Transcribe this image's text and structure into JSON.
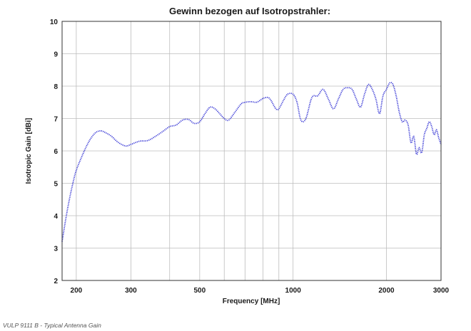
{
  "caption": "VULP 9111 B - Typical Antenna Gain",
  "chart_data": {
    "type": "line",
    "title": "Gewinn bezogen auf Isotropstrahler:",
    "xlabel": "Frequency [MHz]",
    "ylabel": "Isotropic Gain [dBi]",
    "xscale": "log",
    "xlim": [
      180,
      3000
    ],
    "ylim": [
      2,
      10
    ],
    "x_ticks": [
      200,
      300,
      500,
      1000,
      2000,
      3000
    ],
    "x_tick_labels": [
      "200",
      "300",
      "500",
      "1000",
      "2000",
      "3000"
    ],
    "x_gridlines": [
      200,
      300,
      400,
      500,
      600,
      700,
      800,
      900,
      1000,
      2000,
      3000
    ],
    "y_ticks": [
      2,
      3,
      4,
      5,
      6,
      7,
      8,
      9,
      10
    ],
    "y_tick_labels": [
      "2",
      "3",
      "4",
      "5",
      "6",
      "7",
      "8",
      "9",
      "10"
    ],
    "grid": true,
    "color": "#3b3bd6",
    "series": [
      {
        "x": [
          180,
          185,
          190,
          195,
          200,
          210,
          220,
          230,
          240,
          250,
          260,
          270,
          280,
          290,
          300,
          320,
          340,
          360,
          380,
          400,
          420,
          440,
          460,
          480,
          500,
          520,
          540,
          560,
          580,
          600,
          620,
          650,
          680,
          700,
          730,
          760,
          780,
          800,
          830,
          850,
          880,
          900,
          930,
          960,
          1000,
          1030,
          1060,
          1100,
          1150,
          1200,
          1250,
          1300,
          1350,
          1400,
          1450,
          1500,
          1550,
          1600,
          1650,
          1700,
          1750,
          1800,
          1850,
          1900,
          1950,
          2000,
          2050,
          2100,
          2150,
          2200,
          2250,
          2300,
          2350,
          2400,
          2450,
          2500,
          2550,
          2600,
          2650,
          2700,
          2750,
          2800,
          2850,
          2900,
          2950,
          3000
        ],
        "y": [
          3.2,
          3.9,
          4.5,
          5.0,
          5.4,
          5.9,
          6.3,
          6.55,
          6.62,
          6.55,
          6.45,
          6.3,
          6.2,
          6.15,
          6.2,
          6.3,
          6.32,
          6.45,
          6.6,
          6.75,
          6.8,
          6.95,
          6.97,
          6.85,
          6.9,
          7.15,
          7.35,
          7.3,
          7.15,
          7.0,
          6.95,
          7.2,
          7.45,
          7.5,
          7.52,
          7.5,
          7.55,
          7.62,
          7.65,
          7.55,
          7.3,
          7.3,
          7.55,
          7.75,
          7.75,
          7.5,
          6.95,
          7.0,
          7.65,
          7.7,
          7.9,
          7.6,
          7.3,
          7.6,
          7.9,
          7.95,
          7.9,
          7.6,
          7.35,
          7.75,
          8.05,
          7.9,
          7.6,
          7.15,
          7.7,
          7.9,
          8.1,
          8.05,
          7.7,
          7.2,
          6.9,
          6.95,
          6.8,
          6.25,
          6.45,
          5.9,
          6.1,
          5.95,
          6.5,
          6.7,
          6.9,
          6.75,
          6.5,
          6.65,
          6.4,
          6.2
        ]
      }
    ]
  }
}
